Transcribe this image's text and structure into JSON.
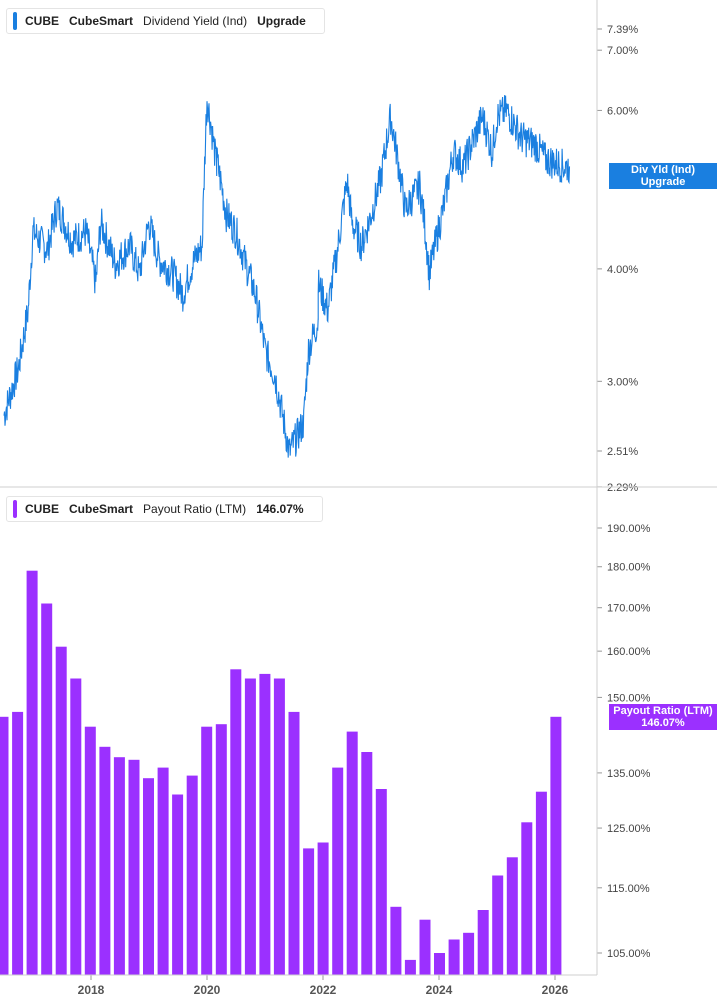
{
  "charts": [
    {
      "legend": {
        "symbol": "CUBE",
        "company": "CubeSmart",
        "metric": "Dividend Yield (Ind)",
        "value": "Upgrade"
      },
      "tag": {
        "line1": "Div Yld (Ind)",
        "line2": "Upgrade"
      },
      "color": "#1a7fe0"
    },
    {
      "legend": {
        "symbol": "CUBE",
        "company": "CubeSmart",
        "metric": "Payout Ratio (LTM)",
        "value": "146.07%"
      },
      "tag": {
        "line1": "Payout Ratio (LTM)",
        "line2": "146.07%"
      },
      "color": "#9b30ff"
    }
  ],
  "chart_data": [
    {
      "type": "line",
      "title": "CUBE CubeSmart Dividend Yield (Ind)",
      "scale": "log",
      "ylim": [
        2.29,
        7.8
      ],
      "yticks": [
        "7.39%",
        "7.00%",
        "6.00%",
        "4.00%",
        "3.00%",
        "2.51%",
        "2.29%"
      ],
      "ytick_values": [
        7.39,
        7.0,
        6.0,
        4.0,
        3.0,
        2.51,
        2.29
      ],
      "x": [
        "2016-07",
        "2016-10",
        "2016-12",
        "2017-01",
        "2017-04",
        "2017-06",
        "2017-09",
        "2017-12",
        "2018-02",
        "2018-03",
        "2018-06",
        "2018-09",
        "2018-11",
        "2019-01",
        "2019-03",
        "2019-06",
        "2019-08",
        "2019-10",
        "2019-12",
        "2020-01",
        "2020-03",
        "2020-03",
        "2020-05",
        "2020-07",
        "2020-09",
        "2020-11",
        "2021-01",
        "2021-03",
        "2021-06",
        "2021-09",
        "2021-10",
        "2021-12",
        "2021-12",
        "2022-02",
        "2022-04",
        "2022-06",
        "2022-07",
        "2022-09",
        "2022-11",
        "2023-01",
        "2023-03",
        "2023-06",
        "2023-09",
        "2023-10",
        "2023-11",
        "2024-02",
        "2024-04",
        "2024-06",
        "2024-08",
        "2024-10",
        "2024-12",
        "2025-01",
        "2025-03",
        "2025-06",
        "2025-09",
        "2025-11",
        "2026-01",
        "2026-03",
        "2026-04"
      ],
      "values": [
        2.75,
        3.1,
        3.6,
        4.4,
        4.2,
        4.7,
        4.3,
        4.4,
        3.85,
        4.5,
        4.05,
        4.25,
        3.95,
        4.5,
        4.1,
        3.95,
        3.75,
        4.05,
        4.25,
        6.2,
        5.2,
        5.3,
        4.6,
        4.4,
        4.05,
        3.75,
        3.25,
        3.05,
        2.5,
        2.7,
        3.25,
        3.5,
        3.85,
        3.6,
        4.2,
        5.0,
        4.5,
        4.25,
        4.6,
        5.05,
        5.9,
        4.65,
        4.95,
        4.5,
        3.95,
        4.7,
        5.4,
        5.2,
        5.55,
        5.9,
        5.4,
        5.9,
        6.0,
        5.6,
        5.5,
        5.3,
        5.25,
        5.2,
        5.2
      ],
      "last_value_label": "Upgrade"
    },
    {
      "type": "bar",
      "title": "CUBE CubeSmart Payout Ratio (LTM)",
      "scale": "log",
      "ylim": [
        101,
        198
      ],
      "yticks": [
        "190.00%",
        "180.00%",
        "170.00%",
        "160.00%",
        "150.00%",
        "135.00%",
        "125.00%",
        "115.00%",
        "105.00%"
      ],
      "ytick_values": [
        190,
        180,
        170,
        160,
        150,
        135,
        125,
        115,
        105
      ],
      "xticks": [
        "2018",
        "2020",
        "2022",
        "2024",
        "2026"
      ],
      "categories": [
        "2016Q3",
        "2016Q4",
        "2017Q1",
        "2017Q2",
        "2017Q3",
        "2017Q4",
        "2018Q1",
        "2018Q2",
        "2018Q3",
        "2018Q4",
        "2019Q1",
        "2019Q2",
        "2019Q3",
        "2019Q4",
        "2020Q1",
        "2020Q2",
        "2020Q3",
        "2020Q4",
        "2021Q1",
        "2021Q2",
        "2021Q3",
        "2021Q4",
        "2022Q1",
        "2022Q2",
        "2022Q3",
        "2022Q4",
        "2023Q1",
        "2023Q2",
        "2023Q3",
        "2023Q4",
        "2024Q1",
        "2024Q2",
        "2024Q3",
        "2024Q4",
        "2025Q1",
        "2025Q2",
        "2025Q3",
        "2025Q4",
        "2026Q1"
      ],
      "values": [
        146,
        147,
        179,
        171,
        161,
        154,
        144,
        140,
        138,
        137.5,
        134,
        136,
        131,
        134.5,
        144,
        144.5,
        156,
        154,
        155,
        154,
        147,
        121.5,
        122.5,
        136,
        143,
        139,
        132,
        112,
        104,
        110,
        105,
        107,
        108,
        111.5,
        117,
        120,
        126,
        131.5,
        146
      ],
      "last_value_label": "146.07%"
    }
  ]
}
